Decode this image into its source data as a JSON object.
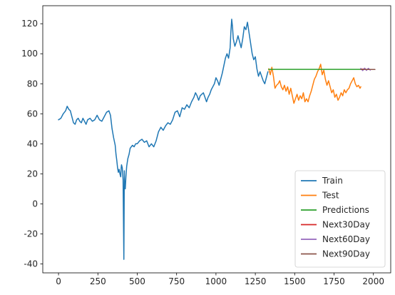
{
  "chart_data": {
    "type": "line",
    "title": "",
    "xlabel": "",
    "ylabel": "",
    "xlim": [
      -100,
      2110
    ],
    "ylim": [
      -46,
      132
    ],
    "x_ticks": [
      0,
      250,
      500,
      750,
      1000,
      1250,
      1500,
      1750,
      2000
    ],
    "y_ticks": [
      -40,
      -20,
      0,
      20,
      40,
      60,
      80,
      100,
      120
    ],
    "grid": false,
    "legend_position": "lower-right",
    "series": [
      {
        "name": "Train",
        "color": "#1f77b4",
        "points": [
          [
            0,
            56
          ],
          [
            15,
            57
          ],
          [
            30,
            60
          ],
          [
            45,
            62
          ],
          [
            55,
            65
          ],
          [
            65,
            63
          ],
          [
            75,
            62
          ],
          [
            85,
            58
          ],
          [
            95,
            54
          ],
          [
            105,
            53
          ],
          [
            115,
            56
          ],
          [
            125,
            57
          ],
          [
            135,
            55
          ],
          [
            145,
            54
          ],
          [
            155,
            57
          ],
          [
            165,
            55
          ],
          [
            175,
            53
          ],
          [
            185,
            56
          ],
          [
            200,
            57
          ],
          [
            215,
            55
          ],
          [
            230,
            56
          ],
          [
            245,
            59
          ],
          [
            260,
            56
          ],
          [
            275,
            55
          ],
          [
            290,
            58
          ],
          [
            305,
            61
          ],
          [
            320,
            62
          ],
          [
            330,
            59
          ],
          [
            340,
            50
          ],
          [
            350,
            44
          ],
          [
            360,
            39
          ],
          [
            365,
            33
          ],
          [
            370,
            29
          ],
          [
            375,
            24
          ],
          [
            380,
            21
          ],
          [
            385,
            23
          ],
          [
            390,
            20
          ],
          [
            395,
            18
          ],
          [
            398,
            24
          ],
          [
            400,
            26
          ],
          [
            405,
            24
          ],
          [
            410,
            16
          ],
          [
            415,
            -37
          ],
          [
            418,
            22
          ],
          [
            420,
            13
          ],
          [
            424,
            10
          ],
          [
            428,
            18
          ],
          [
            433,
            25
          ],
          [
            440,
            30
          ],
          [
            448,
            33
          ],
          [
            455,
            37
          ],
          [
            462,
            38
          ],
          [
            470,
            39
          ],
          [
            480,
            38
          ],
          [
            490,
            40
          ],
          [
            500,
            40
          ],
          [
            515,
            42
          ],
          [
            530,
            43
          ],
          [
            545,
            41
          ],
          [
            560,
            42
          ],
          [
            575,
            38
          ],
          [
            590,
            40
          ],
          [
            605,
            38
          ],
          [
            620,
            42
          ],
          [
            635,
            48
          ],
          [
            650,
            51
          ],
          [
            665,
            49
          ],
          [
            680,
            52
          ],
          [
            695,
            54
          ],
          [
            710,
            53
          ],
          [
            725,
            56
          ],
          [
            740,
            61
          ],
          [
            755,
            62
          ],
          [
            770,
            58
          ],
          [
            785,
            64
          ],
          [
            800,
            63
          ],
          [
            815,
            66
          ],
          [
            830,
            64
          ],
          [
            845,
            68
          ],
          [
            860,
            71
          ],
          [
            870,
            74
          ],
          [
            880,
            72
          ],
          [
            890,
            69
          ],
          [
            900,
            72
          ],
          [
            910,
            73
          ],
          [
            920,
            74
          ],
          [
            930,
            71
          ],
          [
            940,
            68
          ],
          [
            950,
            71
          ],
          [
            960,
            73
          ],
          [
            970,
            76
          ],
          [
            980,
            78
          ],
          [
            990,
            80
          ],
          [
            1000,
            84
          ],
          [
            1010,
            82
          ],
          [
            1020,
            79
          ],
          [
            1030,
            83
          ],
          [
            1040,
            87
          ],
          [
            1050,
            92
          ],
          [
            1060,
            97
          ],
          [
            1070,
            100
          ],
          [
            1080,
            97
          ],
          [
            1090,
            104
          ],
          [
            1095,
            115
          ],
          [
            1100,
            123
          ],
          [
            1105,
            118
          ],
          [
            1110,
            110
          ],
          [
            1120,
            105
          ],
          [
            1130,
            108
          ],
          [
            1140,
            112
          ],
          [
            1150,
            108
          ],
          [
            1160,
            104
          ],
          [
            1170,
            110
          ],
          [
            1180,
            118
          ],
          [
            1190,
            116
          ],
          [
            1200,
            121
          ],
          [
            1210,
            114
          ],
          [
            1220,
            107
          ],
          [
            1230,
            100
          ],
          [
            1240,
            96
          ],
          [
            1250,
            98
          ],
          [
            1260,
            90
          ],
          [
            1270,
            85
          ],
          [
            1280,
            88
          ],
          [
            1290,
            85
          ],
          [
            1300,
            82
          ],
          [
            1310,
            80
          ],
          [
            1320,
            84
          ],
          [
            1330,
            88
          ]
        ]
      },
      {
        "name": "Test",
        "color": "#ff7f0e",
        "points": [
          [
            1335,
            90
          ],
          [
            1345,
            86
          ],
          [
            1355,
            91
          ],
          [
            1365,
            85
          ],
          [
            1375,
            77
          ],
          [
            1385,
            79
          ],
          [
            1395,
            80
          ],
          [
            1405,
            82
          ],
          [
            1415,
            78
          ],
          [
            1425,
            76
          ],
          [
            1435,
            79
          ],
          [
            1445,
            75
          ],
          [
            1455,
            78
          ],
          [
            1465,
            73
          ],
          [
            1475,
            77
          ],
          [
            1485,
            72
          ],
          [
            1495,
            67
          ],
          [
            1505,
            70
          ],
          [
            1515,
            73
          ],
          [
            1525,
            69
          ],
          [
            1535,
            72
          ],
          [
            1545,
            70
          ],
          [
            1555,
            74
          ],
          [
            1565,
            68
          ],
          [
            1575,
            70
          ],
          [
            1585,
            68
          ],
          [
            1595,
            72
          ],
          [
            1605,
            75
          ],
          [
            1615,
            79
          ],
          [
            1625,
            83
          ],
          [
            1635,
            85
          ],
          [
            1645,
            88
          ],
          [
            1655,
            90
          ],
          [
            1665,
            93
          ],
          [
            1675,
            86
          ],
          [
            1685,
            89
          ],
          [
            1695,
            83
          ],
          [
            1705,
            79
          ],
          [
            1715,
            82
          ],
          [
            1725,
            78
          ],
          [
            1735,
            74
          ],
          [
            1745,
            76
          ],
          [
            1755,
            71
          ],
          [
            1765,
            73
          ],
          [
            1775,
            69
          ],
          [
            1785,
            71
          ],
          [
            1795,
            74
          ],
          [
            1805,
            72
          ],
          [
            1815,
            76
          ],
          [
            1825,
            74
          ],
          [
            1835,
            76
          ],
          [
            1845,
            77
          ],
          [
            1855,
            80
          ],
          [
            1865,
            82
          ],
          [
            1875,
            84
          ],
          [
            1885,
            80
          ],
          [
            1895,
            78
          ],
          [
            1905,
            79
          ],
          [
            1915,
            77
          ],
          [
            1920,
            78
          ]
        ]
      },
      {
        "name": "Predictions",
        "color": "#2ca02c",
        "points": [
          [
            1335,
            89.6
          ],
          [
            1920,
            89.6
          ]
        ]
      },
      {
        "name": "Next30Day",
        "color": "#d62728",
        "points": [
          [
            1920,
            89.7
          ],
          [
            1950,
            89.8
          ]
        ]
      },
      {
        "name": "Next60Day",
        "color": "#9467bd",
        "points": [
          [
            1920,
            90.2
          ],
          [
            1932,
            88.8
          ],
          [
            1944,
            90.4
          ],
          [
            1956,
            88.9
          ],
          [
            1968,
            90.3
          ],
          [
            1980,
            89.1
          ]
        ]
      },
      {
        "name": "Next90Day",
        "color": "#8c564b",
        "points": [
          [
            1920,
            89.5
          ],
          [
            2010,
            89.5
          ]
        ]
      }
    ]
  }
}
